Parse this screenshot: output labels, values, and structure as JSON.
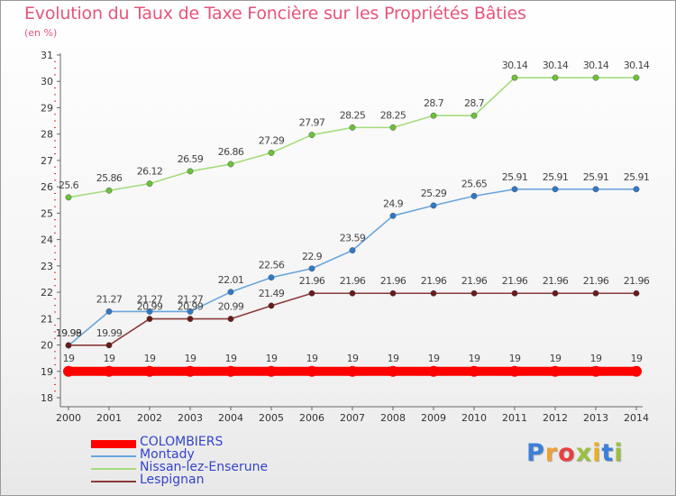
{
  "title": "Evolution du Taux de Taxe Foncière sur les Propriétés Bâties",
  "subtitle": "(en %)",
  "logo": {
    "text": "Proxiti",
    "letters": [
      "P",
      "r",
      "o",
      "x",
      "i",
      "t",
      "i"
    ],
    "colors": [
      "#3d7fd9",
      "#f0a030",
      "#e84040",
      "#9ac040",
      "#e8b020",
      "#3d7fd9",
      "#9ac040"
    ]
  },
  "chart_data": {
    "type": "line",
    "title": "Evolution du Taux de Taxe Foncière sur les Propriétés Bâties",
    "ylabel": "(en %)",
    "x": [
      "2000",
      "2001",
      "2002",
      "2003",
      "2004",
      "2005",
      "2006",
      "2007",
      "2008",
      "2009",
      "2010",
      "2011",
      "2012",
      "2013",
      "2014"
    ],
    "ylim": [
      18,
      31
    ],
    "yticks": [
      "18",
      "19",
      "20",
      "21",
      "22",
      "23",
      "24",
      "25",
      "26",
      "27",
      "28",
      "29",
      "30",
      "31"
    ],
    "grid": false,
    "legend": "bottom-left",
    "series": [
      {
        "name": "COLOMBIERS",
        "color": "#ff0000",
        "marker": "#ff0000",
        "values": [
          19,
          19,
          19,
          19,
          19,
          19,
          19,
          19,
          19,
          19,
          19,
          19,
          19,
          19,
          19
        ],
        "labels": [
          "19",
          "19",
          "19",
          "19",
          "19",
          "19",
          "19",
          "19",
          "19",
          "19",
          "19",
          "19",
          "19",
          "19",
          "19"
        ]
      },
      {
        "name": "Montady",
        "color": "#6aa6de",
        "marker": "#2f79c8",
        "values": [
          19.98,
          21.27,
          21.27,
          21.27,
          22.01,
          22.56,
          22.9,
          23.59,
          24.9,
          25.29,
          25.65,
          25.91,
          25.91,
          25.91,
          25.91
        ],
        "labels": [
          "19.98",
          "21.27",
          "21.27",
          "21.27",
          "22.01",
          "22.56",
          "22.9",
          "23.59",
          "24.9",
          "25.29",
          "25.65",
          "25.91",
          "25.91",
          "25.91",
          "25.91"
        ]
      },
      {
        "name": "Nissan-lez-Enserune",
        "color": "#a3dd7a",
        "marker": "#6cc23a",
        "values": [
          25.6,
          25.86,
          26.12,
          26.59,
          26.86,
          27.29,
          27.97,
          28.25,
          28.25,
          28.7,
          28.7,
          30.14,
          30.14,
          30.14,
          30.14
        ],
        "labels": [
          "25.6",
          "25.86",
          "26.12",
          "26.59",
          "26.86",
          "27.29",
          "27.97",
          "28.25",
          "28.25",
          "28.7",
          "28.7",
          "30.14",
          "30.14",
          "30.14",
          "30.14"
        ]
      },
      {
        "name": "Lespignan",
        "color": "#8b3a3a",
        "marker": "#6a1a1a",
        "values": [
          19.99,
          19.99,
          20.99,
          20.99,
          20.99,
          21.49,
          21.96,
          21.96,
          21.96,
          21.96,
          21.96,
          21.96,
          21.96,
          21.96,
          21.96
        ],
        "labels": [
          "19.99",
          "19.99",
          "20.99",
          "20.99",
          "20.99",
          "21.49",
          "21.96",
          "21.96",
          "21.96",
          "21.96",
          "21.96",
          "21.96",
          "21.96",
          "21.96",
          "21.96"
        ]
      }
    ]
  }
}
